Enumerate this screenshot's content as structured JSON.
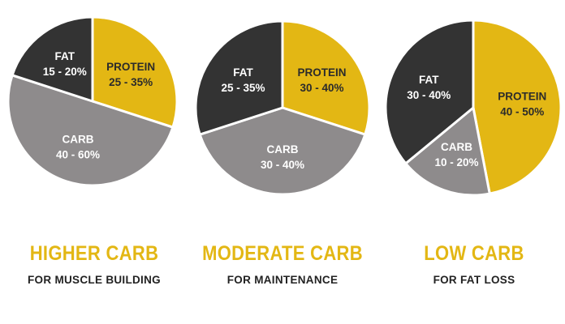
{
  "colors": {
    "protein": "#e3b714",
    "fat": "#333333",
    "carb": "#8e8b8c",
    "title": "#e3b714",
    "subtitle": "#222222",
    "label_light": "#ffffff",
    "label_dark": "#2b2b2b"
  },
  "chart_data": [
    {
      "type": "pie",
      "title": "HIGHER CARB",
      "subtitle": "FOR MUSCLE BUILDING",
      "slices": [
        {
          "name": "PROTEIN",
          "range": "25 - 35%",
          "value": 30,
          "color": "#e3b714"
        },
        {
          "name": "CARB",
          "range": "40 - 60%",
          "value": 50,
          "color": "#8e8b8c"
        },
        {
          "name": "FAT",
          "range": "15 - 20%",
          "value": 20,
          "color": "#333333"
        }
      ]
    },
    {
      "type": "pie",
      "title": "MODERATE CARB",
      "subtitle": "FOR MAINTENANCE",
      "slices": [
        {
          "name": "PROTEIN",
          "range": "30 - 40%",
          "value": 30,
          "color": "#e3b714"
        },
        {
          "name": "CARB",
          "range": "30 - 40%",
          "value": 40,
          "color": "#8e8b8c"
        },
        {
          "name": "FAT",
          "range": "25 - 35%",
          "value": 30,
          "color": "#333333"
        }
      ]
    },
    {
      "type": "pie",
      "title": "LOW CARB",
      "subtitle": "FOR FAT LOSS",
      "slices": [
        {
          "name": "PROTEIN",
          "range": "40 - 50%",
          "value": 47,
          "color": "#e3b714"
        },
        {
          "name": "CARB",
          "range": "10 - 20%",
          "value": 17,
          "color": "#8e8b8c"
        },
        {
          "name": "FAT",
          "range": "30 - 40%",
          "value": 36,
          "color": "#333333"
        }
      ]
    }
  ]
}
